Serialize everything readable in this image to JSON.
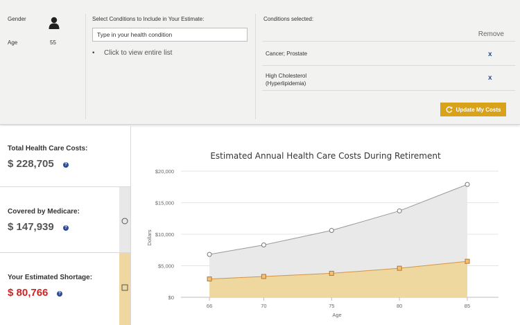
{
  "profile": {
    "gender_label": "Gender",
    "age_label": "Age",
    "age_value": "55",
    "gender_icon": "person-icon"
  },
  "conditions_picker": {
    "heading": "Select Conditions to Include in Your Estimate:",
    "input_value": "Type in your health condition",
    "view_list": "Click to view entire list"
  },
  "selected": {
    "heading": "Conditions selected:",
    "remove_label": "Remove",
    "items": [
      {
        "line1": "Cancer; Prostate",
        "line2": "",
        "remove": "x"
      },
      {
        "line1": "High Cholesterol",
        "line2": "(Hyperlipidemia)",
        "remove": "x"
      }
    ],
    "update_button": "Update My Costs"
  },
  "summary": {
    "total_label": "Total Health Care Costs:",
    "total_value": "$ 228,705",
    "medicare_label": "Covered by Medicare:",
    "medicare_value": "$ 147,939",
    "shortage_label": "Your Estimated Shortage:",
    "shortage_value": "$ 80,766",
    "help_glyph": "?"
  },
  "colors": {
    "accent": "#d9a21b",
    "link_blue": "#2b4c94",
    "shortage_red": "#d12323",
    "medicare_fill": "#e9e9e9",
    "shortage_fill": "#efd8a0",
    "shortage_line": "#d39445"
  },
  "chart_data": {
    "type": "area",
    "title": "Estimated Annual Health Care Costs During Retirement",
    "xlabel": "Age",
    "ylabel": "Dollars",
    "x": [
      66,
      70,
      75,
      80,
      85
    ],
    "x_ticks": [
      "66",
      "70",
      "75",
      "80",
      "85"
    ],
    "y_ticks": [
      "$0",
      "$5,000",
      "$10,000",
      "$15,000",
      "$20,000"
    ],
    "ylim": [
      0,
      20000
    ],
    "grid": true,
    "series": [
      {
        "values": [
          6800,
          8300,
          10600,
          13700,
          17900
        ]
      },
      {
        "values": [
          2900,
          3300,
          3800,
          4600,
          5700
        ]
      }
    ]
  }
}
